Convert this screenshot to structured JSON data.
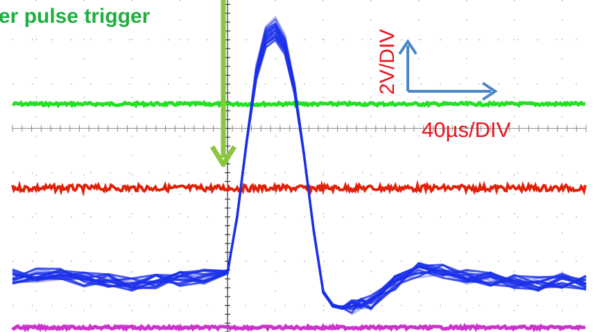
{
  "chart_data": {
    "type": "line",
    "annotations": {
      "trigger_label": "er pulse trigger",
      "volt_scale": "2V/DIV",
      "time_scale": "40µs/DIV"
    },
    "grid": true,
    "x_divisions": 12,
    "y_divisions": 8,
    "xlim": [
      -4.5,
      7.5
    ],
    "ylim": [
      -4.6,
      2.9
    ],
    "trigger_x": 0,
    "series": [
      {
        "color": "#22e022",
        "x": [
          -4.5,
          7.5
        ],
        "y": [
          0.55,
          0.55
        ]
      },
      {
        "color": "#e0220a",
        "x": [
          -4.5,
          7.5
        ],
        "y": [
          -1.35,
          -1.35
        ]
      },
      {
        "color": "#cc33cc",
        "x": [
          -4.5,
          7.5
        ],
        "y": [
          -4.5,
          -4.5
        ]
      },
      {
        "color": "#1a2fe8",
        "x": [
          -4.5,
          -4.0,
          -3.5,
          -3.0,
          -2.5,
          -2.0,
          -1.5,
          -1.0,
          -0.5,
          0.0,
          0.2,
          0.4,
          0.6,
          0.8,
          1.0,
          1.2,
          1.4,
          1.6,
          1.8,
          2.0,
          2.2,
          2.4,
          2.6,
          2.8,
          3.0,
          3.5,
          4.0,
          4.5,
          5.0,
          5.5,
          6.0,
          6.5,
          7.0,
          7.5
        ],
        "y": [
          -3.35,
          -3.3,
          -3.3,
          -3.4,
          -3.45,
          -3.5,
          -3.45,
          -3.4,
          -3.35,
          -3.25,
          -2.0,
          -0.3,
          1.4,
          2.3,
          2.5,
          2.1,
          1.0,
          -0.6,
          -2.3,
          -3.7,
          -4.0,
          -4.05,
          -4.05,
          -4.0,
          -3.95,
          -3.5,
          -3.2,
          -3.25,
          -3.35,
          -3.4,
          -3.45,
          -3.5,
          -3.45,
          -3.5
        ]
      }
    ]
  }
}
